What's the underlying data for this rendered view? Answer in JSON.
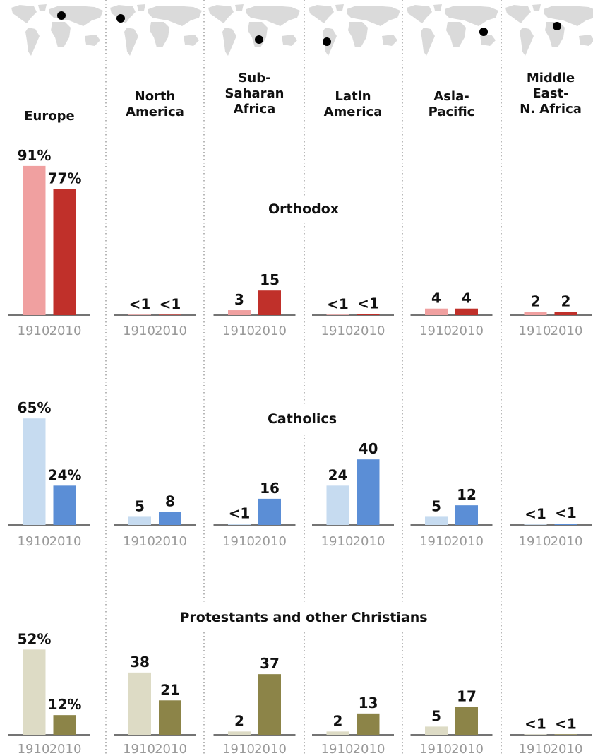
{
  "regions": [
    {
      "name_lines": [
        "Europe"
      ]
    },
    {
      "name_lines": [
        "North",
        "America"
      ]
    },
    {
      "name_lines": [
        "Sub-",
        "Saharan",
        "Africa"
      ]
    },
    {
      "name_lines": [
        "Latin",
        "America"
      ]
    },
    {
      "name_lines": [
        "Asia-",
        "Pacific"
      ]
    },
    {
      "name_lines": [
        "Middle",
        "East-",
        "N. Africa"
      ]
    }
  ],
  "map_icon": "world-map-icon",
  "colors": {
    "orthodox_1910": "#f0a0a0",
    "orthodox_2010": "#c0302a",
    "catholic_1910": "#c6dbf0",
    "catholic_2010": "#5b8ed6",
    "protestant_1910": "#dddbc5",
    "protestant_2010": "#8c8448",
    "map": "#dadada",
    "dot": "#000000"
  },
  "chart_data": [
    {
      "type": "bar",
      "title": "Orthodox",
      "categories": [
        "Europe",
        "North America",
        "Sub-Saharan Africa",
        "Latin America",
        "Asia-Pacific",
        "Middle East-N. Africa"
      ],
      "x_ticks": [
        "1910",
        "2010"
      ],
      "series": [
        {
          "name": "1910",
          "values": [
            91,
            0.3,
            3,
            0.3,
            4,
            2
          ],
          "labels": [
            "91%",
            "<1",
            "3",
            "<1",
            "4",
            "2"
          ]
        },
        {
          "name": "2010",
          "values": [
            77,
            0.3,
            15,
            0.6,
            4,
            2
          ],
          "labels": [
            "77%",
            "<1",
            "15",
            "<1",
            "4",
            "2"
          ]
        }
      ],
      "ylim": [
        0,
        100
      ]
    },
    {
      "type": "bar",
      "title": "Catholics",
      "categories": [
        "Europe",
        "North America",
        "Sub-Saharan Africa",
        "Latin America",
        "Asia-Pacific",
        "Middle East-N. Africa"
      ],
      "x_ticks": [
        "1910",
        "2010"
      ],
      "series": [
        {
          "name": "1910",
          "values": [
            65,
            5,
            0.6,
            24,
            5,
            0.3
          ],
          "labels": [
            "65%",
            "5",
            "<1",
            "24",
            "5",
            "<1"
          ]
        },
        {
          "name": "2010",
          "values": [
            24,
            8,
            16,
            40,
            12,
            0.8
          ],
          "labels": [
            "24%",
            "8",
            "16",
            "40",
            "12",
            "<1"
          ]
        }
      ],
      "ylim": [
        0,
        100
      ]
    },
    {
      "type": "bar",
      "title": "Protestants and other Christians",
      "categories": [
        "Europe",
        "North America",
        "Sub-Saharan Africa",
        "Latin America",
        "Asia-Pacific",
        "Middle East-N. Africa"
      ],
      "x_ticks": [
        "1910",
        "2010"
      ],
      "series": [
        {
          "name": "1910",
          "values": [
            52,
            38,
            2,
            2,
            5,
            0.3
          ],
          "labels": [
            "52%",
            "38",
            "2",
            "2",
            "5",
            "<1"
          ]
        },
        {
          "name": "2010",
          "values": [
            12,
            21,
            37,
            13,
            17,
            0.3
          ],
          "labels": [
            "12%",
            "21",
            "37",
            "13",
            "17",
            "<1"
          ]
        }
      ],
      "ylim": [
        0,
        100
      ]
    }
  ]
}
